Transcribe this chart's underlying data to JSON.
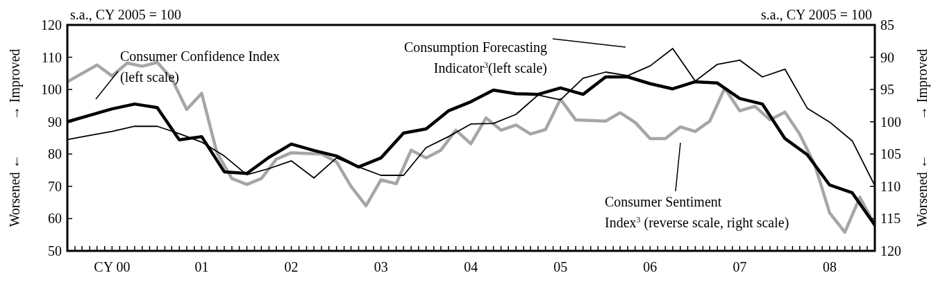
{
  "chart_data": {
    "type": "line",
    "subtitle": "s.a., CY 2005 = 100",
    "ylabel": "Worsened ←          → Improved",
    "y2label": "Worsened ←          → Improved",
    "annotations": [
      "Consumer Confidence Index\n(left scale)",
      "Consumption Forecasting\nIndicator$^{3}$(left scale)",
      "Consumer Sentiment\nIndex$^{3}$ (reverse scale, right scale)"
    ],
    "x": [
      "2000-01",
      "2000-04",
      "2000-07",
      "2000-10",
      "2001-01",
      "2001-04",
      "2001-07",
      "2001-10",
      "2002-01",
      "2002-04",
      "2002-07",
      "2002-10",
      "2003-01",
      "2003-04",
      "2003-07",
      "2003-10",
      "2004-01",
      "2004-04",
      "2004-07",
      "2004-10",
      "2005-01",
      "2005-04",
      "2005-07",
      "2005-10",
      "2006-01",
      "2006-04",
      "2006-07",
      "2006-10",
      "2007-01",
      "2007-04",
      "2007-07",
      "2007-10",
      "2008-01",
      "2008-04",
      "2008-07",
      "2008-10",
      "2009-01"
    ],
    "series": [
      {
        "color": "#000000",
        "values": [
          90.0,
          92.0,
          94.0,
          95.5,
          94.4,
          84.4,
          85.4,
          74.5,
          74.0,
          79.0,
          83.1,
          81.1,
          79.4,
          76.0,
          78.8,
          86.5,
          87.8,
          93.4,
          96.2,
          99.8,
          98.7,
          98.5,
          100.5,
          98.5,
          103.9,
          103.9,
          101.8,
          100.2,
          102.4,
          102.0,
          97.2,
          95.5,
          84.8,
          79.8,
          70.4,
          68.0,
          58.0
        ]
      },
      {
        "color": "#000000",
        "values": [
          84.5,
          85.8,
          87.0,
          88.6,
          88.6,
          86.3,
          83.7,
          79.4,
          73.6,
          75.5,
          77.9,
          72.6,
          78.8,
          76.0,
          73.4,
          73.4,
          82.0,
          85.4,
          89.3,
          89.5,
          92.3,
          98.3,
          96.8,
          103.5,
          105.4,
          104.3,
          107.3,
          112.7,
          102.6,
          107.8,
          109.1,
          103.9,
          106.3,
          94.2,
          89.9,
          84.1,
          70.2
        ]
      },
      {
        "color": "#a6a6a6",
        "axis": "y2",
        "x": [
          "2000-01",
          "2000-05",
          "2000-07",
          "2000-09",
          "2000-11",
          "2001-01",
          "2001-03",
          "2001-05",
          "2001-07",
          "2001-09",
          "2001-11",
          "2002-01",
          "2002-03",
          "2002-05",
          "2002-07",
          "2002-11",
          "2003-01",
          "2003-03",
          "2003-05",
          "2003-07",
          "2003-09",
          "2003-11",
          "2004-01",
          "2004-03",
          "2004-05",
          "2004-07",
          "2004-09",
          "2004-11",
          "2005-01",
          "2005-03",
          "2005-05",
          "2005-07",
          "2005-09",
          "2006-01",
          "2006-03",
          "2006-05",
          "2006-07",
          "2006-09",
          "2006-11",
          "2007-01",
          "2007-03",
          "2007-05",
          "2007-07",
          "2007-09",
          "2007-11",
          "2008-01",
          "2008-03",
          "2008-05",
          "2008-07",
          "2008-09",
          "2008-11",
          "2009-01"
        ],
        "values": [
          93.8,
          91.2,
          92.9,
          90.9,
          91.4,
          90.8,
          93.3,
          98.1,
          95.6,
          104.8,
          108.8,
          109.7,
          108.8,
          105.8,
          104.8,
          105.0,
          106.2,
          110.0,
          113.0,
          109.0,
          109.6,
          104.4,
          105.6,
          104.4,
          101.3,
          103.4,
          99.4,
          101.3,
          100.5,
          101.9,
          101.2,
          96.5,
          99.7,
          99.9,
          98.6,
          100.1,
          102.6,
          102.6,
          100.8,
          101.5,
          99.9,
          94.8,
          98.3,
          97.6,
          99.7,
          98.5,
          101.9,
          106.6,
          114.1,
          117.1,
          111.7,
          116.0
        ]
      }
    ],
    "xlim": [
      "2000-01",
      "2009-01"
    ],
    "xticks": [
      {
        "value": "2000-01",
        "label": null
      },
      {
        "value": "2000-02",
        "label": null
      },
      {
        "value": "2000-03",
        "label": null
      },
      {
        "value": "2000-04",
        "label": null
      },
      {
        "value": "2000-05",
        "label": null
      },
      {
        "value": "2000-06",
        "label": null
      },
      {
        "value": "2000-07",
        "label": "CY 00"
      },
      {
        "value": "2000-08",
        "label": null
      },
      {
        "value": "2000-09",
        "label": null
      },
      {
        "value": "2000-10",
        "label": null
      },
      {
        "value": "2000-11",
        "label": null
      },
      {
        "value": "2000-12",
        "label": null
      },
      {
        "value": "2001-01",
        "label": null
      },
      {
        "value": "2001-02",
        "label": null
      },
      {
        "value": "2001-03",
        "label": null
      },
      {
        "value": "2001-04",
        "label": null
      },
      {
        "value": "2001-05",
        "label": null
      },
      {
        "value": "2001-06",
        "label": null
      },
      {
        "value": "2001-07",
        "label": "01"
      },
      {
        "value": "2001-08",
        "label": null
      },
      {
        "value": "2001-09",
        "label": null
      },
      {
        "value": "2001-10",
        "label": null
      },
      {
        "value": "2001-11",
        "label": null
      },
      {
        "value": "2001-12",
        "label": null
      },
      {
        "value": "2002-01",
        "label": null
      },
      {
        "value": "2002-02",
        "label": null
      },
      {
        "value": "2002-03",
        "label": null
      },
      {
        "value": "2002-04",
        "label": null
      },
      {
        "value": "2002-05",
        "label": null
      },
      {
        "value": "2002-06",
        "label": null
      },
      {
        "value": "2002-07",
        "label": "02"
      },
      {
        "value": "2002-08",
        "label": null
      },
      {
        "value": "2002-09",
        "label": null
      },
      {
        "value": "2002-10",
        "label": null
      },
      {
        "value": "2002-11",
        "label": null
      },
      {
        "value": "2002-12",
        "label": null
      },
      {
        "value": "2003-01",
        "label": null
      },
      {
        "value": "2003-02",
        "label": null
      },
      {
        "value": "2003-03",
        "label": null
      },
      {
        "value": "2003-04",
        "label": null
      },
      {
        "value": "2003-05",
        "label": null
      },
      {
        "value": "2003-06",
        "label": null
      },
      {
        "value": "2003-07",
        "label": "03"
      },
      {
        "value": "2003-08",
        "label": null
      },
      {
        "value": "2003-09",
        "label": null
      },
      {
        "value": "2003-10",
        "label": null
      },
      {
        "value": "2003-11",
        "label": null
      },
      {
        "value": "2003-12",
        "label": null
      },
      {
        "value": "2004-01",
        "label": null
      },
      {
        "value": "2004-02",
        "label": null
      },
      {
        "value": "2004-03",
        "label": null
      },
      {
        "value": "2004-04",
        "label": null
      },
      {
        "value": "2004-05",
        "label": null
      },
      {
        "value": "2004-06",
        "label": null
      },
      {
        "value": "2004-07",
        "label": "04"
      },
      {
        "value": "2004-08",
        "label": null
      },
      {
        "value": "2004-09",
        "label": null
      },
      {
        "value": "2004-10",
        "label": null
      },
      {
        "value": "2004-11",
        "label": null
      },
      {
        "value": "2004-12",
        "label": null
      },
      {
        "value": "2005-01",
        "label": null
      },
      {
        "value": "2005-02",
        "label": null
      },
      {
        "value": "2005-03",
        "label": null
      },
      {
        "value": "2005-04",
        "label": null
      },
      {
        "value": "2005-05",
        "label": null
      },
      {
        "value": "2005-06",
        "label": null
      },
      {
        "value": "2005-07",
        "label": "05"
      },
      {
        "value": "2005-08",
        "label": null
      },
      {
        "value": "2005-09",
        "label": null
      },
      {
        "value": "2005-10",
        "label": null
      },
      {
        "value": "2005-11",
        "label": null
      },
      {
        "value": "2005-12",
        "label": null
      },
      {
        "value": "2006-01",
        "label": null
      },
      {
        "value": "2006-02",
        "label": null
      },
      {
        "value": "2006-03",
        "label": null
      },
      {
        "value": "2006-04",
        "label": null
      },
      {
        "value": "2006-05",
        "label": null
      },
      {
        "value": "2006-06",
        "label": null
      },
      {
        "value": "2006-07",
        "label": "06"
      },
      {
        "value": "2006-08",
        "label": null
      },
      {
        "value": "2006-09",
        "label": null
      },
      {
        "value": "2006-10",
        "label": null
      },
      {
        "value": "2006-11",
        "label": null
      },
      {
        "value": "2006-12",
        "label": null
      },
      {
        "value": "2007-01",
        "label": null
      },
      {
        "value": "2007-02",
        "label": null
      },
      {
        "value": "2007-03",
        "label": null
      },
      {
        "value": "2007-04",
        "label": null
      },
      {
        "value": "2007-05",
        "label": null
      },
      {
        "value": "2007-06",
        "label": null
      },
      {
        "value": "2007-07",
        "label": "07"
      },
      {
        "value": "2007-08",
        "label": null
      },
      {
        "value": "2007-09",
        "label": null
      },
      {
        "value": "2007-10",
        "label": null
      },
      {
        "value": "2007-11",
        "label": null
      },
      {
        "value": "2007-12",
        "label": null
      },
      {
        "value": "2008-01",
        "label": null
      },
      {
        "value": "2008-02",
        "label": null
      },
      {
        "value": "2008-03",
        "label": null
      },
      {
        "value": "2008-04",
        "label": null
      },
      {
        "value": "2008-05",
        "label": null
      },
      {
        "value": "2008-06",
        "label": null
      },
      {
        "value": "2008-07",
        "label": "08"
      },
      {
        "value": "2008-08",
        "label": null
      },
      {
        "value": "2008-09",
        "label": null
      },
      {
        "value": "2008-10",
        "label": null
      },
      {
        "value": "2008-11",
        "label": null
      },
      {
        "value": "2008-12",
        "label": null
      },
      {
        "value": "2009-01",
        "label": null
      }
    ],
    "ylim": [
      50,
      120
    ],
    "yticks": [
      50,
      60,
      70,
      80,
      90,
      100,
      110,
      120
    ],
    "y2lim": [
      120,
      85
    ],
    "y2ticks": [
      85,
      90,
      95,
      100,
      105,
      110,
      115,
      120
    ],
    "grid": false,
    "marker": "none",
    "line_style": "solid"
  }
}
